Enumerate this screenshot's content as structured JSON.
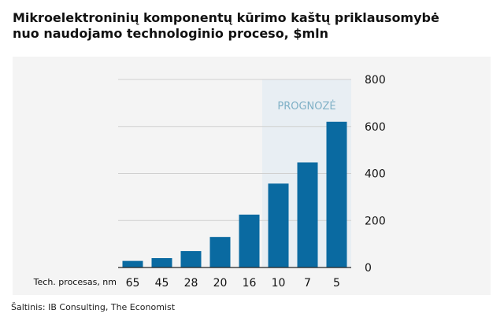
{
  "title": {
    "line1": "Mikroelektroninių komponentų kūrimo kaštų priklausomybė",
    "line2": "nuo naudojamo technologinio proceso, $mln"
  },
  "source": "Šaltinis: IB Consulting, The Economist",
  "chart_data": {
    "type": "bar",
    "title": "Mikroelektroninių komponentų kūrimo kaštų priklausomybė nuo naudojamo technologinio proceso, $mln",
    "xlabel": "Tech. procesas, nm",
    "ylabel": "",
    "categories": [
      "65",
      "45",
      "28",
      "20",
      "16",
      "10",
      "7",
      "5"
    ],
    "values": [
      28,
      40,
      70,
      130,
      225,
      357,
      447,
      620
    ],
    "ylim": [
      0,
      800
    ],
    "yticks": [
      0,
      200,
      400,
      600,
      800
    ],
    "y_axis_position": "right",
    "grid": true,
    "forecast": {
      "label": "PROGNOZĖ",
      "categories": [
        "10",
        "7",
        "5"
      ]
    },
    "colors": {
      "bar": "#0a6aa1",
      "forecast_band": "#e8eef3",
      "forecast_text": "#7fb0c6",
      "grid": "#d0d0d0",
      "panel": "#f4f4f4"
    }
  }
}
